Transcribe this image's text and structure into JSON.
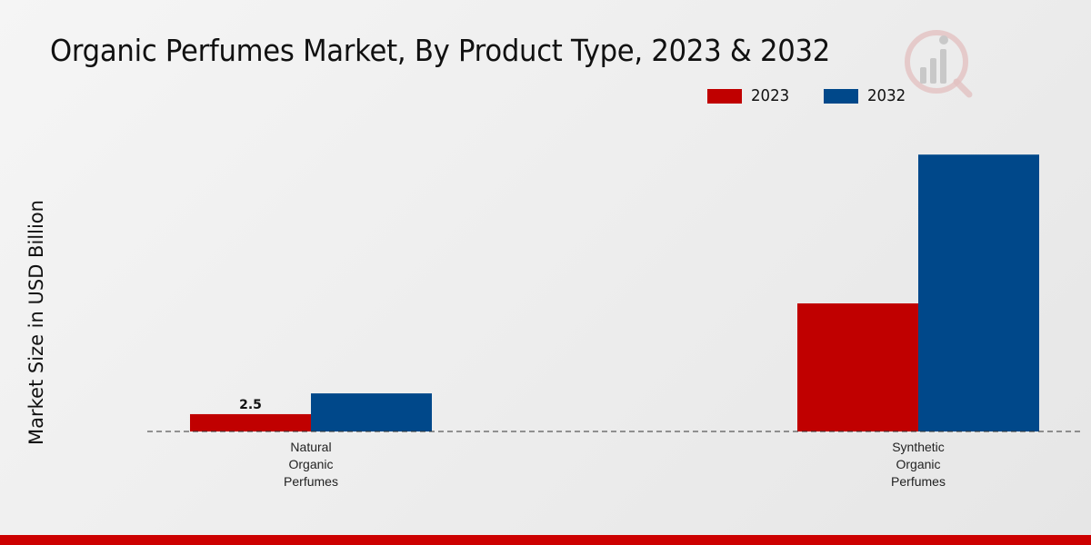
{
  "chart_data": {
    "type": "bar",
    "title": "Organic Perfumes Market, By Product Type, 2023 & 2032",
    "xlabel": "",
    "ylabel": "Market Size in USD Billion",
    "categories": [
      "Natural\nOrganic\nPerfumes",
      "Synthetic\nOrganic\nPerfumes"
    ],
    "series": [
      {
        "name": "2023",
        "color": "#c00000",
        "values": [
          2.5,
          18.5
        ]
      },
      {
        "name": "2032",
        "color": "#00488a",
        "values": [
          5.5,
          40.0
        ]
      }
    ],
    "data_labels": [
      {
        "series": 0,
        "category": 0,
        "text": "2.5"
      }
    ],
    "ylim": [
      0,
      50
    ],
    "grid": false,
    "legend": "top-right"
  }
}
